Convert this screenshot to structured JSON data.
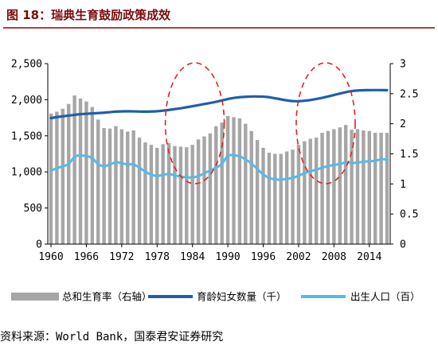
{
  "figure": {
    "title": "图 18：瑞典生育鼓励政策成效",
    "source": "资料来源：World Bank，国泰君安证券研究"
  },
  "colors": {
    "bars": "#a6a6a6",
    "women_line": "#1f5fa8",
    "births_line": "#56b9ea",
    "highlight": "#e3221c",
    "title": "#7a0c0c",
    "rule": "#b0413e"
  },
  "chart_data": {
    "type": "bar",
    "title": "",
    "x": [
      1960,
      1961,
      1962,
      1963,
      1964,
      1965,
      1966,
      1967,
      1968,
      1969,
      1970,
      1971,
      1972,
      1973,
      1974,
      1975,
      1976,
      1977,
      1978,
      1979,
      1980,
      1981,
      1982,
      1983,
      1984,
      1985,
      1986,
      1987,
      1988,
      1989,
      1990,
      1991,
      1992,
      1993,
      1994,
      1995,
      1996,
      1997,
      1998,
      1999,
      2000,
      2001,
      2002,
      2003,
      2004,
      2005,
      2006,
      2007,
      2008,
      2009,
      2010,
      2011,
      2012,
      2013,
      2014,
      2015,
      2016,
      2017
    ],
    "x_ticks": [
      1960,
      1966,
      1972,
      1978,
      1984,
      1990,
      1996,
      2002,
      2008,
      2014
    ],
    "y_left": {
      "ticks": [
        "0",
        "500",
        "1,000",
        "1,500",
        "2,000",
        "2,500"
      ],
      "lim": [
        0,
        2500
      ]
    },
    "y_right": {
      "ticks": [
        "0",
        "0.5",
        "1",
        "1.5",
        "2",
        "2.5",
        "3"
      ],
      "lim": [
        0,
        3
      ]
    },
    "series": [
      {
        "name": "总和生育率（右轴）",
        "type": "bar",
        "axis": "right",
        "values": [
          2.17,
          2.2,
          2.25,
          2.33,
          2.47,
          2.42,
          2.37,
          2.28,
          2.07,
          1.93,
          1.92,
          1.96,
          1.91,
          1.87,
          1.89,
          1.77,
          1.69,
          1.65,
          1.6,
          1.66,
          1.68,
          1.63,
          1.62,
          1.61,
          1.65,
          1.74,
          1.79,
          1.84,
          1.96,
          2.02,
          2.13,
          2.11,
          2.09,
          2.0,
          1.88,
          1.73,
          1.6,
          1.52,
          1.5,
          1.5,
          1.54,
          1.57,
          1.65,
          1.71,
          1.75,
          1.77,
          1.85,
          1.88,
          1.91,
          1.94,
          1.98,
          1.9,
          1.91,
          1.89,
          1.88,
          1.85,
          1.85,
          1.85
        ]
      },
      {
        "name": "育龄妇女数量（千）",
        "type": "line",
        "axis": "left",
        "values": [
          1745,
          1760,
          1770,
          1780,
          1790,
          1800,
          1805,
          1810,
          1815,
          1820,
          1828,
          1835,
          1838,
          1840,
          1838,
          1836,
          1835,
          1836,
          1840,
          1848,
          1858,
          1870,
          1882,
          1895,
          1910,
          1925,
          1940,
          1955,
          1970,
          1990,
          2010,
          2025,
          2035,
          2040,
          2045,
          2045,
          2042,
          2035,
          2020,
          2005,
          1990,
          1980,
          1978,
          1985,
          1995,
          2010,
          2025,
          2045,
          2065,
          2085,
          2105,
          2120,
          2128,
          2132,
          2133,
          2133,
          2133,
          2132
        ]
      },
      {
        "name": "出生人口（百）",
        "type": "line",
        "axis": "left",
        "values": [
          1020,
          1050,
          1080,
          1100,
          1220,
          1230,
          1220,
          1200,
          1100,
          1075,
          1100,
          1140,
          1120,
          1100,
          1110,
          1060,
          1000,
          960,
          940,
          960,
          975,
          950,
          935,
          925,
          920,
          940,
          980,
          1020,
          1060,
          1100,
          1240,
          1230,
          1220,
          1175,
          1120,
          1040,
          960,
          915,
          895,
          890,
          905,
          915,
          945,
          985,
          1010,
          1030,
          1060,
          1080,
          1100,
          1105,
          1140,
          1120,
          1130,
          1140,
          1150,
          1150,
          1180,
          1170
        ]
      }
    ],
    "legend_position": "bottom",
    "annotations": "two red dashed ellipses highlighting approx. 1980-1989 and 2002-2010"
  }
}
